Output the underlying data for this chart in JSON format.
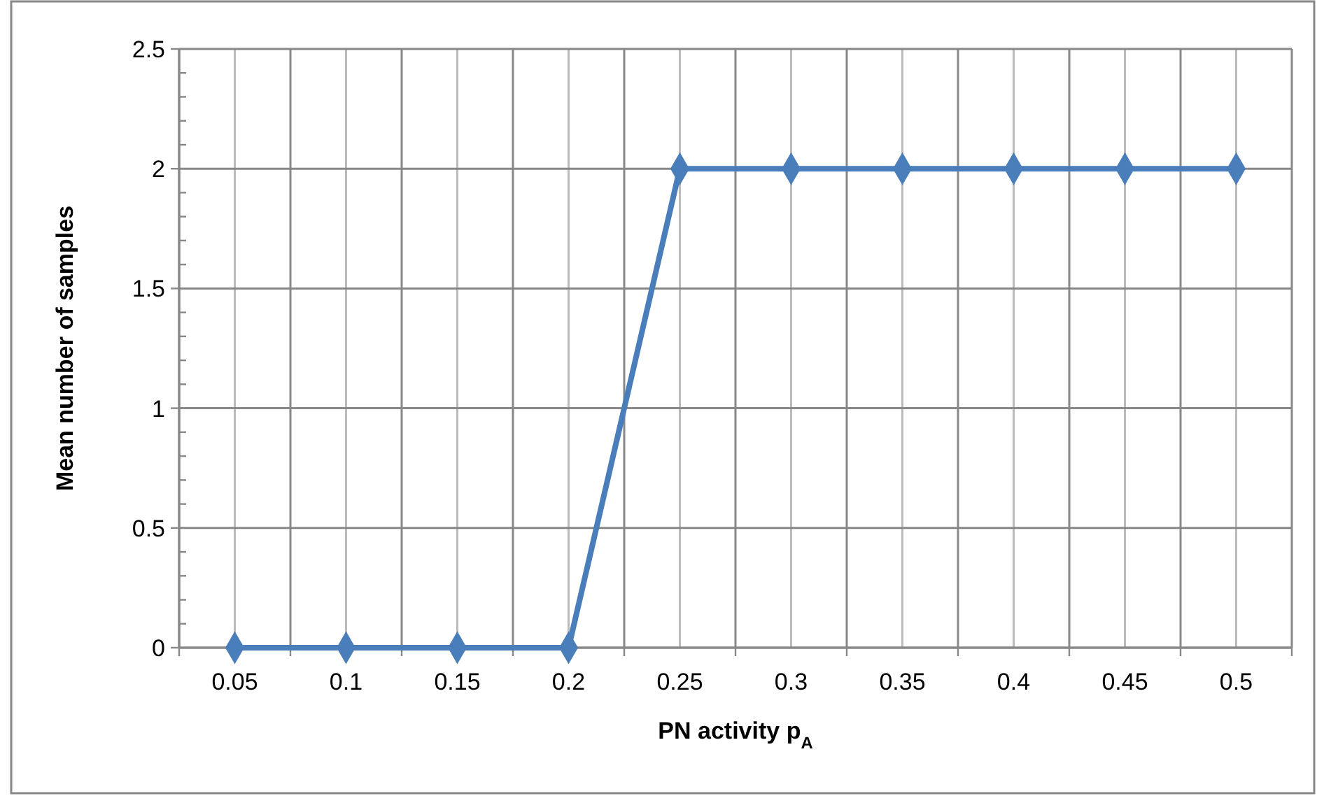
{
  "chart_data": {
    "type": "line",
    "xlabel": "PN activity p$_{A}$",
    "ylabel": "Mean number of samples",
    "categories": [
      "0.05",
      "0.1",
      "0.15",
      "0.2",
      "0.25",
      "0.3",
      "0.35",
      "0.4",
      "0.45",
      "0.5"
    ],
    "series": [
      {
        "color": "#4a7ebb",
        "values": [
          0,
          0,
          0,
          0,
          2,
          2,
          2,
          2,
          2,
          2
        ]
      }
    ],
    "ylim": [
      0,
      2.5
    ],
    "yticks": [
      0,
      {
        "value": 0.1,
        "label": null
      },
      {
        "value": 0.2,
        "label": null
      },
      {
        "value": 0.3,
        "label": null
      },
      {
        "value": 0.4,
        "label": null
      },
      0.5,
      {
        "value": 0.6,
        "label": null
      },
      {
        "value": 0.7,
        "label": null
      },
      {
        "value": 0.8,
        "label": null
      },
      {
        "value": 0.9,
        "label": null
      },
      1,
      {
        "value": 1.1,
        "label": null
      },
      {
        "value": 1.2,
        "label": null
      },
      {
        "value": 1.3,
        "label": null
      },
      {
        "value": 1.4,
        "label": null
      },
      1.5,
      {
        "value": 1.6,
        "label": null
      },
      {
        "value": 1.7,
        "label": null
      },
      {
        "value": 1.8,
        "label": null
      },
      {
        "value": 1.9,
        "label": null
      },
      2,
      {
        "value": 2.1,
        "label": null
      },
      {
        "value": 2.2,
        "label": null
      },
      {
        "value": 2.3,
        "label": null
      },
      {
        "value": 2.4,
        "label": null
      },
      2.5
    ],
    "grid": true,
    "marker": "diamond",
    "line_style": "solid"
  }
}
